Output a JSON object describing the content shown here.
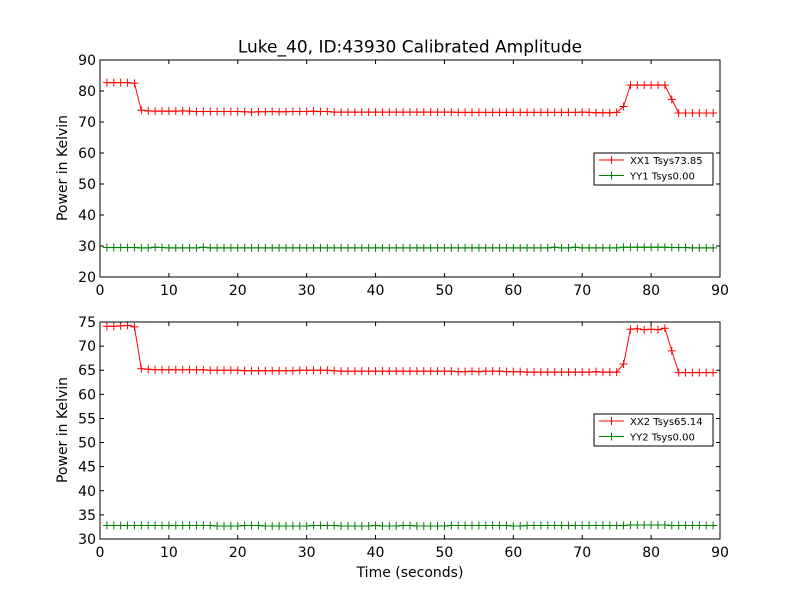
{
  "title": "Luke_40, ID:43930 Calibrated Amplitude",
  "chart_data": [
    {
      "type": "line",
      "title": "Luke_40, ID:43930 Calibrated Amplitude",
      "xlabel": "",
      "ylabel": "Power in Kelvin",
      "xlim": [
        0,
        90
      ],
      "ylim": [
        20,
        90
      ],
      "xticks": [
        0,
        10,
        20,
        30,
        40,
        50,
        60,
        70,
        80,
        90
      ],
      "yticks": [
        20,
        30,
        40,
        50,
        60,
        70,
        80,
        90
      ],
      "grid": false,
      "legend_position": "right",
      "x": [
        1,
        2,
        3,
        4,
        5,
        6,
        7,
        8,
        9,
        10,
        11,
        12,
        13,
        14,
        15,
        16,
        17,
        18,
        19,
        20,
        21,
        22,
        23,
        24,
        25,
        26,
        27,
        28,
        29,
        30,
        31,
        32,
        33,
        34,
        35,
        36,
        37,
        38,
        39,
        40,
        41,
        42,
        43,
        44,
        45,
        46,
        47,
        48,
        49,
        50,
        51,
        52,
        53,
        54,
        55,
        56,
        57,
        58,
        59,
        60,
        61,
        62,
        63,
        64,
        65,
        66,
        67,
        68,
        69,
        70,
        71,
        72,
        73,
        74,
        75,
        76,
        77,
        78,
        79,
        80,
        81,
        82,
        83,
        84,
        85,
        86,
        87,
        88,
        89
      ],
      "series": [
        {
          "name": "XX1 Tsys73.85",
          "color": "#ff0000",
          "values": [
            82.7,
            82.7,
            82.7,
            82.7,
            82.5,
            73.8,
            73.6,
            73.5,
            73.5,
            73.5,
            73.5,
            73.6,
            73.5,
            73.4,
            73.4,
            73.4,
            73.4,
            73.4,
            73.4,
            73.4,
            73.3,
            73.2,
            73.3,
            73.3,
            73.4,
            73.3,
            73.3,
            73.4,
            73.4,
            73.4,
            73.5,
            73.4,
            73.4,
            73.2,
            73.2,
            73.2,
            73.2,
            73.2,
            73.2,
            73.2,
            73.2,
            73.2,
            73.2,
            73.2,
            73.2,
            73.2,
            73.2,
            73.2,
            73.2,
            73.2,
            73.2,
            73.1,
            73.1,
            73.1,
            73.1,
            73.1,
            73.1,
            73.1,
            73.1,
            73.1,
            73.1,
            73.1,
            73.1,
            73.1,
            73.1,
            73.1,
            73.1,
            73.1,
            73.1,
            73.2,
            73.1,
            73.0,
            73.0,
            73.0,
            73.1,
            75.0,
            81.9,
            81.9,
            81.9,
            81.9,
            81.9,
            81.9,
            77.3,
            72.9,
            72.9,
            72.9,
            72.9,
            72.9,
            72.9
          ]
        },
        {
          "name": "YY1 Tsys0.00",
          "color": "#008000",
          "values": [
            29.5,
            29.5,
            29.5,
            29.5,
            29.5,
            29.4,
            29.4,
            29.6,
            29.5,
            29.4,
            29.4,
            29.4,
            29.4,
            29.4,
            29.6,
            29.4,
            29.4,
            29.4,
            29.4,
            29.4,
            29.4,
            29.4,
            29.4,
            29.4,
            29.4,
            29.4,
            29.4,
            29.4,
            29.4,
            29.4,
            29.4,
            29.4,
            29.4,
            29.4,
            29.4,
            29.4,
            29.4,
            29.4,
            29.4,
            29.4,
            29.4,
            29.4,
            29.4,
            29.4,
            29.4,
            29.4,
            29.4,
            29.4,
            29.4,
            29.4,
            29.4,
            29.4,
            29.4,
            29.4,
            29.4,
            29.4,
            29.4,
            29.4,
            29.4,
            29.4,
            29.4,
            29.4,
            29.4,
            29.4,
            29.4,
            29.6,
            29.4,
            29.4,
            29.6,
            29.4,
            29.4,
            29.4,
            29.4,
            29.4,
            29.4,
            29.6,
            29.6,
            29.6,
            29.6,
            29.6,
            29.6,
            29.6,
            29.5,
            29.5,
            29.5,
            29.4,
            29.4,
            29.4,
            29.4
          ]
        }
      ]
    },
    {
      "type": "line",
      "title": "",
      "xlabel": "Time (seconds)",
      "ylabel": "Power in Kelvin",
      "xlim": [
        0,
        90
      ],
      "ylim": [
        30,
        75
      ],
      "xticks": [
        0,
        10,
        20,
        30,
        40,
        50,
        60,
        70,
        80,
        90
      ],
      "yticks": [
        30,
        35,
        40,
        45,
        50,
        55,
        60,
        65,
        70,
        75
      ],
      "grid": false,
      "legend_position": "right",
      "x": [
        1,
        2,
        3,
        4,
        5,
        6,
        7,
        8,
        9,
        10,
        11,
        12,
        13,
        14,
        15,
        16,
        17,
        18,
        19,
        20,
        21,
        22,
        23,
        24,
        25,
        26,
        27,
        28,
        29,
        30,
        31,
        32,
        33,
        34,
        35,
        36,
        37,
        38,
        39,
        40,
        41,
        42,
        43,
        44,
        45,
        46,
        47,
        48,
        49,
        50,
        51,
        52,
        53,
        54,
        55,
        56,
        57,
        58,
        59,
        60,
        61,
        62,
        63,
        64,
        65,
        66,
        67,
        68,
        69,
        70,
        71,
        72,
        73,
        74,
        75,
        76,
        77,
        78,
        79,
        80,
        81,
        82,
        83,
        84,
        85,
        86,
        87,
        88,
        89
      ],
      "series": [
        {
          "name": "XX2 Tsys65.14",
          "color": "#ff0000",
          "values": [
            74.1,
            74.1,
            74.2,
            74.3,
            74.0,
            65.3,
            65.2,
            65.1,
            65.1,
            65.1,
            65.1,
            65.1,
            65.1,
            65.1,
            65.1,
            65.0,
            65.0,
            65.0,
            65.0,
            65.0,
            64.9,
            64.9,
            64.9,
            64.9,
            64.9,
            64.9,
            64.9,
            64.9,
            65.0,
            65.0,
            65.0,
            65.0,
            65.0,
            64.9,
            64.8,
            64.8,
            64.8,
            64.8,
            64.8,
            64.8,
            64.8,
            64.8,
            64.8,
            64.8,
            64.8,
            64.8,
            64.8,
            64.8,
            64.8,
            64.8,
            64.8,
            64.7,
            64.7,
            64.8,
            64.7,
            64.8,
            64.8,
            64.8,
            64.7,
            64.7,
            64.7,
            64.6,
            64.6,
            64.6,
            64.6,
            64.6,
            64.6,
            64.6,
            64.6,
            64.6,
            64.6,
            64.7,
            64.6,
            64.6,
            64.6,
            66.3,
            73.5,
            73.6,
            73.4,
            73.5,
            73.4,
            73.7,
            69.0,
            64.5,
            64.5,
            64.5,
            64.5,
            64.5,
            64.5
          ]
        },
        {
          "name": "YY2 Tsys0.00",
          "color": "#008000",
          "values": [
            32.8,
            32.8,
            32.8,
            32.8,
            32.8,
            32.8,
            32.8,
            32.8,
            32.8,
            32.8,
            32.8,
            32.8,
            32.8,
            32.8,
            32.8,
            32.8,
            32.7,
            32.7,
            32.7,
            32.7,
            32.8,
            32.8,
            32.8,
            32.7,
            32.7,
            32.7,
            32.7,
            32.7,
            32.7,
            32.7,
            32.8,
            32.8,
            32.8,
            32.8,
            32.7,
            32.7,
            32.7,
            32.7,
            32.7,
            32.8,
            32.7,
            32.7,
            32.7,
            32.8,
            32.8,
            32.7,
            32.7,
            32.7,
            32.7,
            32.7,
            32.8,
            32.8,
            32.8,
            32.8,
            32.8,
            32.8,
            32.8,
            32.8,
            32.8,
            32.7,
            32.7,
            32.8,
            32.8,
            32.8,
            32.8,
            32.8,
            32.8,
            32.8,
            32.8,
            32.8,
            32.8,
            32.8,
            32.8,
            32.8,
            32.8,
            32.8,
            32.9,
            32.9,
            32.9,
            32.9,
            32.9,
            32.9,
            32.8,
            32.8,
            32.8,
            32.8,
            32.8,
            32.8,
            32.8
          ]
        }
      ]
    }
  ]
}
